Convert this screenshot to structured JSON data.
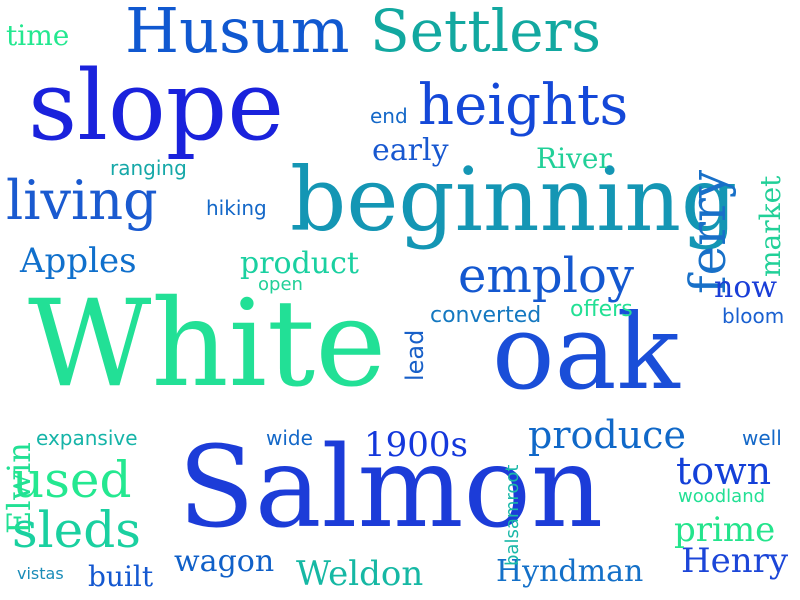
{
  "word_cloud": {
    "words": [
      {
        "text": "White",
        "color": "#22e096"
      },
      {
        "text": "Salmon",
        "color": "#1c3cd8"
      },
      {
        "text": "oak",
        "color": "#1a4ed8"
      },
      {
        "text": "beginning",
        "color": "#1496b4"
      },
      {
        "text": "slope",
        "color": "#1a22dc"
      },
      {
        "text": "Husum",
        "color": "#1058d0"
      },
      {
        "text": "Settlers",
        "color": "#12a8a0"
      },
      {
        "text": "heights",
        "color": "#1448d8"
      },
      {
        "text": "living",
        "color": "#1a5ad0"
      },
      {
        "text": "employ",
        "color": "#1458d0"
      },
      {
        "text": "used",
        "color": "#24e890"
      },
      {
        "text": "sleds",
        "color": "#1ad0a0"
      },
      {
        "text": "produce",
        "color": "#1068c8"
      },
      {
        "text": "ferry",
        "color": "#1870c8"
      },
      {
        "text": "town",
        "color": "#1440d8"
      },
      {
        "text": "1900s",
        "color": "#1438dc"
      },
      {
        "text": "Weldon",
        "color": "#16b8a4"
      },
      {
        "text": "Hyndman",
        "color": "#1470c8"
      },
      {
        "text": "Henry",
        "color": "#1c46d8"
      },
      {
        "text": "wagon",
        "color": "#1060c8"
      },
      {
        "text": "prime",
        "color": "#24e48c"
      },
      {
        "text": "product",
        "color": "#1ad0a0"
      },
      {
        "text": "Apples",
        "color": "#1070cc"
      },
      {
        "text": "early",
        "color": "#1858d0"
      },
      {
        "text": "River",
        "color": "#22d098"
      },
      {
        "text": "market",
        "color": "#22d098"
      },
      {
        "text": "now",
        "color": "#1a3ed8"
      },
      {
        "text": "Elwin",
        "color": "#22e094"
      },
      {
        "text": "built",
        "color": "#1458d0"
      },
      {
        "text": "time",
        "color": "#24e890"
      },
      {
        "text": "lead",
        "color": "#1860c8"
      },
      {
        "text": "converted",
        "color": "#1478c0"
      },
      {
        "text": "offers",
        "color": "#22e094"
      },
      {
        "text": "bloom",
        "color": "#1a60d0"
      },
      {
        "text": "balsamroot",
        "color": "#1ab8a8"
      },
      {
        "text": "woodland",
        "color": "#22e094"
      },
      {
        "text": "expansive",
        "color": "#16b4a8"
      },
      {
        "text": "well",
        "color": "#1468c8"
      },
      {
        "text": "wide",
        "color": "#1468c8"
      },
      {
        "text": "vistas",
        "color": "#1a8cb8"
      },
      {
        "text": "hiking",
        "color": "#1468c8"
      },
      {
        "text": "ranging",
        "color": "#16a8a8"
      },
      {
        "text": "open",
        "color": "#22d098"
      },
      {
        "text": "end",
        "color": "#1468c8"
      }
    ]
  }
}
